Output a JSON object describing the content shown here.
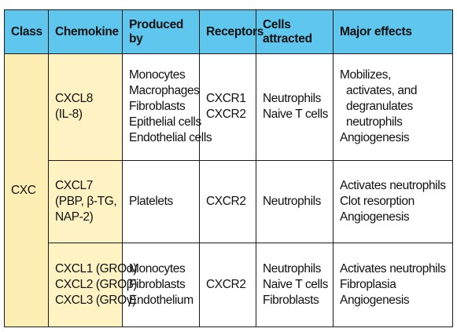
{
  "headers": {
    "class": "Class",
    "chemokine": "Chemokine",
    "produced_by": "Produced by",
    "receptors": "Receptors",
    "cells_attracted": "Cells attracted",
    "major_effects": "Major effects"
  },
  "class_value": "CXC",
  "rows": [
    {
      "chemokine": [
        "CXCL8",
        "(IL-8)"
      ],
      "produced_by": [
        "Monocytes",
        "Macrophages",
        "Fibroblasts",
        "Epithelial cells",
        "Endothelial cells"
      ],
      "receptors": [
        "CXCR1",
        "CXCR2"
      ],
      "cells_attracted": [
        "Neutrophils",
        "Naive T cells"
      ],
      "major_effects": [
        "Mobilizes,",
        "activates, and",
        "degranulates",
        "neutrophils",
        "Angiogenesis"
      ]
    },
    {
      "chemokine": [
        "CXCL7",
        "(PBP, β-TG,",
        "NAP-2)"
      ],
      "produced_by": [
        "Platelets"
      ],
      "receptors": [
        "CXCR2"
      ],
      "cells_attracted": [
        "Neutrophils"
      ],
      "major_effects": [
        "Activates neutrophils",
        "Clot resorption",
        "Angiogenesis"
      ]
    },
    {
      "chemokine": [
        "CXCL1 (GROα)",
        "CXCL2 (GROβ)",
        "CXCL3 (GROγ)"
      ],
      "produced_by": [
        "Monocytes",
        "Fibroblasts",
        "Endothelium"
      ],
      "receptors": [
        "CXCR2"
      ],
      "cells_attracted": [
        "Neutrophils",
        "Naive T cells",
        "Fibroblasts"
      ],
      "major_effects": [
        "Activates neutrophils",
        "Fibroplasia",
        "Angiogenesis"
      ]
    }
  ],
  "colors": {
    "header_bg": "#5fc6ee",
    "class_bg": "#fdefb4",
    "chemokine_bg": "#fff3c4",
    "border": "#1b1b1b"
  }
}
